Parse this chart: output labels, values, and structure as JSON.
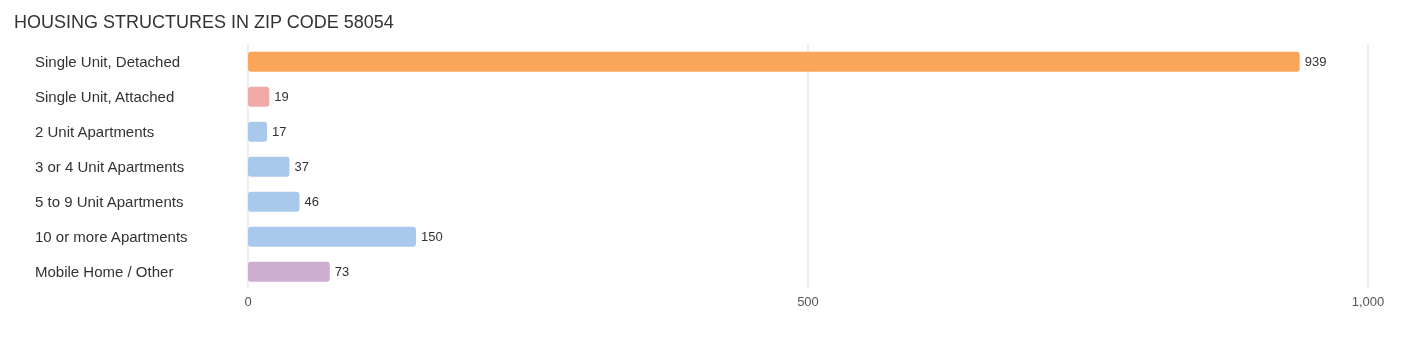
{
  "chart_data": {
    "type": "bar",
    "orientation": "horizontal",
    "title": "HOUSING STRUCTURES IN ZIP CODE 58054",
    "categories": [
      "Single Unit, Detached",
      "Single Unit, Attached",
      "2 Unit Apartments",
      "3 or 4 Unit Apartments",
      "5 to 9 Unit Apartments",
      "10 or more Apartments",
      "Mobile Home / Other"
    ],
    "values": [
      939,
      19,
      17,
      37,
      46,
      150,
      73
    ],
    "colors": [
      "#f9a65a",
      "#f0aaa8",
      "#a8c8ec",
      "#a8c8ec",
      "#a8c8ec",
      "#a8c8ec",
      "#cdaed0"
    ],
    "xlim": [
      0,
      1000
    ],
    "xticks": [
      0,
      500,
      {
        "value": 1000,
        "label": "1,000"
      }
    ],
    "grid": "x",
    "data_labels": true
  }
}
